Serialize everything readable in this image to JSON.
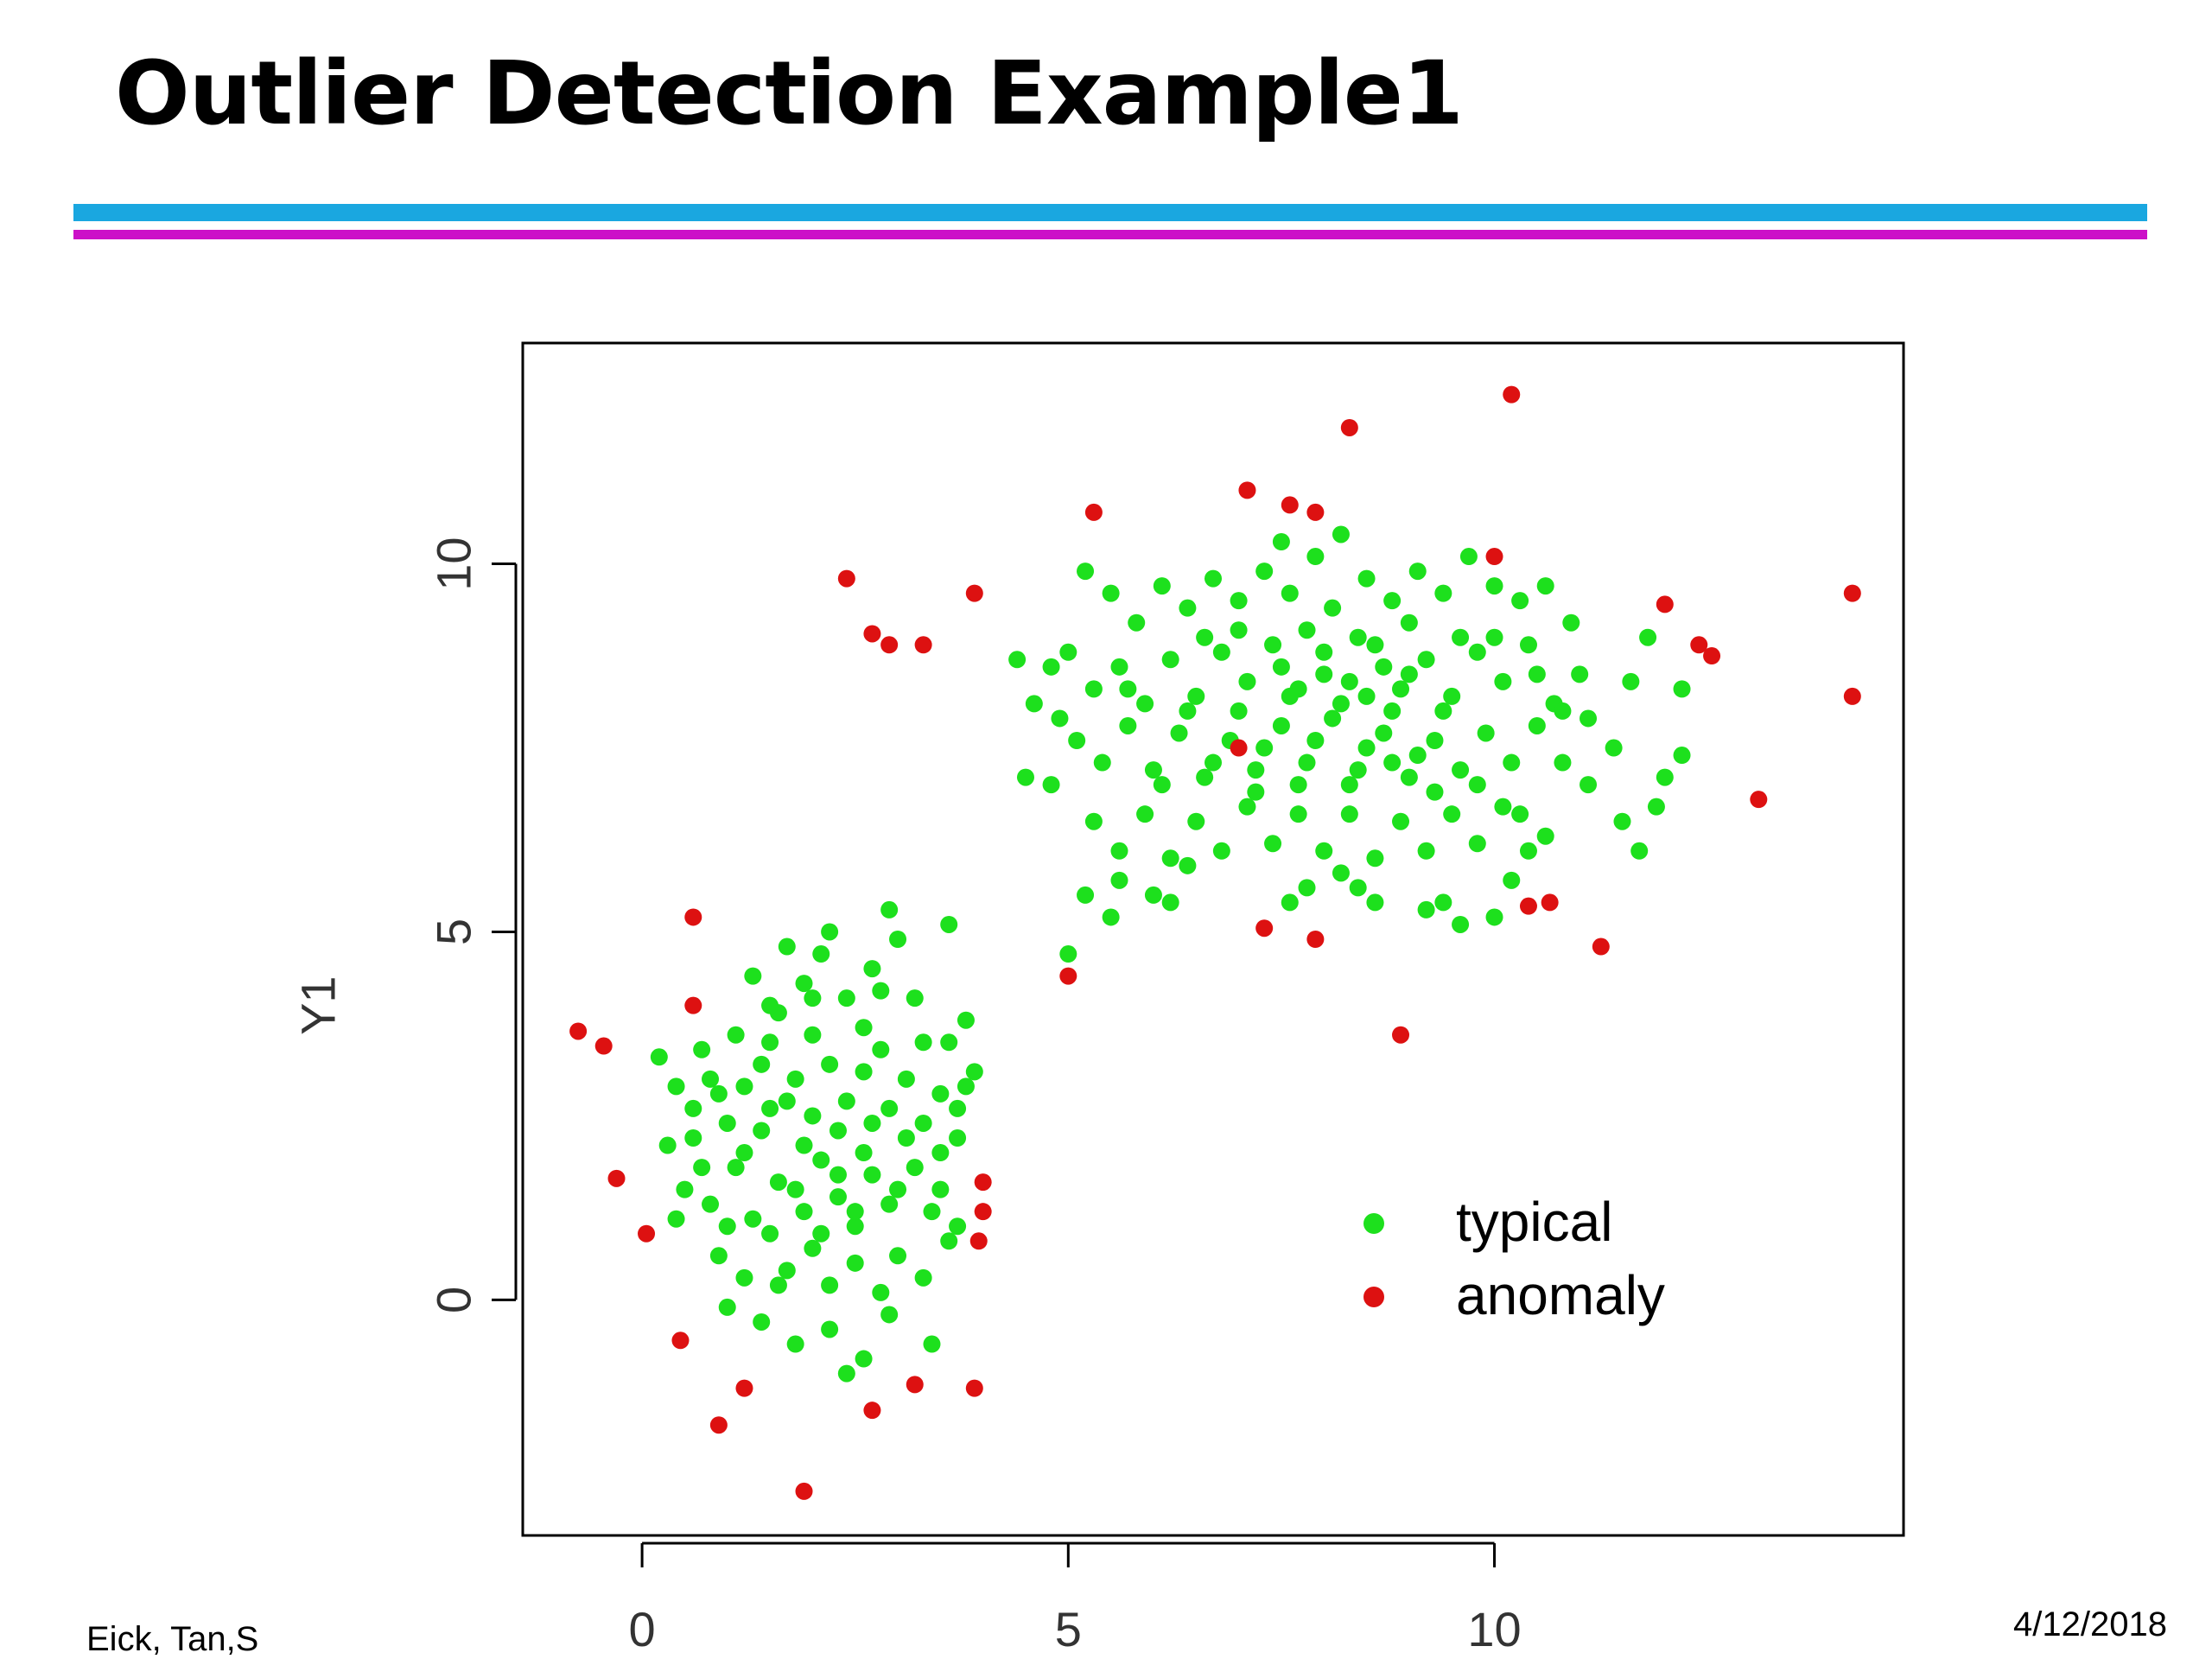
{
  "slide": {
    "title": "Outlier Detection Example1",
    "footer_left": "Eick, Tan,S",
    "footer_right": "4/12/2018"
  },
  "colors": {
    "typical": "#1de01d",
    "anomaly": "#dd1111",
    "rule_top": "#1aa7e0",
    "rule_bottom": "#cc10c8"
  },
  "chart_data": {
    "type": "scatter",
    "title": "",
    "xlabel": "",
    "ylabel": "Y1",
    "xlim": [
      -1.4,
      14.8
    ],
    "ylim": [
      -3.2,
      13.0
    ],
    "x_ticks": [
      0,
      5,
      10
    ],
    "y_ticks": [
      0,
      5,
      10
    ],
    "grid": false,
    "legend_position": "bottom-right",
    "series": [
      {
        "name": "typical",
        "color": "#1de01d",
        "points": [
          [
            0.2,
            3.3
          ],
          [
            0.4,
            2.9
          ],
          [
            0.3,
            2.1
          ],
          [
            0.6,
            2.6
          ],
          [
            0.8,
            3.0
          ],
          [
            1.0,
            2.4
          ],
          [
            1.2,
            2.9
          ],
          [
            1.5,
            3.5
          ],
          [
            1.4,
            2.3
          ],
          [
            1.8,
            3.0
          ],
          [
            2.0,
            2.5
          ],
          [
            2.2,
            3.2
          ],
          [
            2.4,
            2.7
          ],
          [
            2.6,
            3.1
          ],
          [
            2.9,
            2.6
          ],
          [
            3.1,
            3.0
          ],
          [
            3.3,
            2.4
          ],
          [
            3.5,
            2.8
          ],
          [
            3.7,
            2.2
          ],
          [
            0.5,
            1.5
          ],
          [
            0.8,
            1.3
          ],
          [
            1.1,
            1.8
          ],
          [
            1.3,
            1.1
          ],
          [
            1.6,
            1.6
          ],
          [
            1.9,
            1.2
          ],
          [
            2.1,
            1.9
          ],
          [
            2.3,
            1.4
          ],
          [
            2.5,
            1.0
          ],
          [
            2.7,
            1.7
          ],
          [
            2.9,
            1.3
          ],
          [
            3.2,
            1.8
          ],
          [
            3.4,
            1.2
          ],
          [
            3.6,
            0.8
          ],
          [
            0.9,
            0.6
          ],
          [
            1.2,
            0.3
          ],
          [
            1.5,
            0.9
          ],
          [
            1.7,
            0.4
          ],
          [
            2.0,
            0.7
          ],
          [
            2.2,
            0.2
          ],
          [
            2.5,
            0.5
          ],
          [
            2.8,
            0.1
          ],
          [
            3.0,
            0.6
          ],
          [
            1.0,
            -0.1
          ],
          [
            1.4,
            -0.3
          ],
          [
            1.8,
            -0.6
          ],
          [
            2.2,
            -0.4
          ],
          [
            2.6,
            -0.8
          ],
          [
            2.9,
            -0.2
          ],
          [
            3.4,
            -0.6
          ],
          [
            2.4,
            -1.0
          ],
          [
            1.6,
            3.9
          ],
          [
            1.9,
            4.3
          ],
          [
            2.1,
            4.7
          ],
          [
            2.4,
            4.1
          ],
          [
            2.7,
            4.5
          ],
          [
            3.0,
            4.9
          ],
          [
            2.2,
            5.0
          ],
          [
            2.9,
            5.3
          ],
          [
            1.3,
            4.4
          ],
          [
            1.7,
            4.8
          ],
          [
            3.6,
            3.5
          ],
          [
            3.8,
            3.8
          ],
          [
            3.9,
            3.1
          ],
          [
            3.7,
            2.6
          ],
          [
            3.5,
            1.5
          ],
          [
            3.7,
            1.0
          ],
          [
            3.3,
            0.3
          ],
          [
            0.6,
            2.2
          ],
          [
            0.7,
            3.4
          ],
          [
            1.1,
            3.6
          ],
          [
            1.4,
            3.2
          ],
          [
            1.7,
            2.7
          ],
          [
            2.0,
            3.6
          ],
          [
            2.3,
            2.3
          ],
          [
            2.6,
            2.0
          ],
          [
            2.8,
            3.4
          ],
          [
            3.1,
            2.2
          ],
          [
            3.3,
            3.5
          ],
          [
            3.6,
            5.1
          ],
          [
            1.2,
            2.0
          ],
          [
            1.5,
            2.6
          ],
          [
            1.9,
            2.1
          ],
          [
            2.3,
            1.7
          ],
          [
            2.7,
            2.4
          ],
          [
            3.0,
            1.5
          ],
          [
            1.0,
            1.0
          ],
          [
            1.8,
            1.5
          ],
          [
            2.5,
            1.2
          ],
          [
            2.1,
            0.9
          ],
          [
            1.6,
            0.2
          ],
          [
            0.4,
            1.1
          ],
          [
            0.7,
            1.8
          ],
          [
            3.8,
            2.9
          ],
          [
            3.2,
            4.1
          ],
          [
            2.6,
            3.7
          ],
          [
            1.5,
            4.0
          ],
          [
            2.0,
            4.1
          ],
          [
            0.9,
            2.8
          ],
          [
            2.8,
            4.2
          ],
          [
            3.5,
            2.0
          ],
          [
            4.4,
            8.7
          ],
          [
            4.8,
            8.6
          ],
          [
            5.2,
            9.9
          ],
          [
            5.5,
            9.6
          ],
          [
            5.8,
            9.2
          ],
          [
            6.1,
            9.7
          ],
          [
            6.4,
            9.4
          ],
          [
            6.7,
            9.8
          ],
          [
            7.0,
            9.5
          ],
          [
            7.3,
            9.9
          ],
          [
            7.6,
            9.6
          ],
          [
            7.9,
            10.1
          ],
          [
            8.2,
            10.4
          ],
          [
            8.5,
            9.8
          ],
          [
            8.8,
            9.5
          ],
          [
            9.1,
            9.9
          ],
          [
            9.4,
            9.6
          ],
          [
            9.7,
            10.1
          ],
          [
            10.0,
            9.7
          ],
          [
            10.3,
            9.5
          ],
          [
            10.6,
            9.7
          ],
          [
            10.9,
            9.2
          ],
          [
            5.0,
            8.8
          ],
          [
            5.3,
            8.3
          ],
          [
            5.6,
            8.6
          ],
          [
            5.9,
            8.1
          ],
          [
            6.2,
            8.7
          ],
          [
            6.5,
            8.2
          ],
          [
            6.8,
            8.8
          ],
          [
            7.1,
            8.4
          ],
          [
            7.4,
            8.9
          ],
          [
            7.7,
            8.3
          ],
          [
            8.0,
            8.8
          ],
          [
            8.3,
            8.4
          ],
          [
            8.6,
            8.9
          ],
          [
            8.9,
            8.3
          ],
          [
            9.2,
            8.7
          ],
          [
            9.5,
            8.2
          ],
          [
            9.8,
            8.8
          ],
          [
            10.1,
            8.4
          ],
          [
            10.4,
            8.9
          ],
          [
            10.7,
            8.1
          ],
          [
            11.0,
            8.5
          ],
          [
            4.5,
            7.1
          ],
          [
            4.8,
            7.0
          ],
          [
            5.1,
            7.6
          ],
          [
            5.4,
            7.3
          ],
          [
            5.7,
            7.8
          ],
          [
            6.0,
            7.2
          ],
          [
            6.3,
            7.7
          ],
          [
            6.6,
            7.1
          ],
          [
            6.9,
            7.6
          ],
          [
            7.2,
            7.2
          ],
          [
            7.5,
            7.8
          ],
          [
            7.8,
            7.3
          ],
          [
            8.1,
            7.9
          ],
          [
            8.4,
            7.2
          ],
          [
            8.7,
            7.7
          ],
          [
            9.0,
            7.1
          ],
          [
            9.3,
            7.6
          ],
          [
            9.6,
            7.2
          ],
          [
            9.9,
            7.7
          ],
          [
            10.2,
            7.3
          ],
          [
            10.5,
            7.8
          ],
          [
            10.8,
            7.3
          ],
          [
            11.1,
            7.9
          ],
          [
            5.3,
            6.5
          ],
          [
            5.6,
            6.1
          ],
          [
            5.9,
            6.6
          ],
          [
            6.2,
            6.0
          ],
          [
            6.5,
            6.5
          ],
          [
            6.8,
            6.1
          ],
          [
            7.1,
            6.7
          ],
          [
            7.4,
            6.2
          ],
          [
            7.7,
            6.6
          ],
          [
            8.0,
            6.1
          ],
          [
            8.3,
            6.6
          ],
          [
            8.6,
            6.0
          ],
          [
            8.9,
            6.5
          ],
          [
            9.2,
            6.1
          ],
          [
            9.5,
            6.6
          ],
          [
            9.8,
            6.2
          ],
          [
            10.1,
            6.7
          ],
          [
            10.4,
            6.1
          ],
          [
            5.2,
            5.5
          ],
          [
            5.6,
            5.7
          ],
          [
            6.0,
            5.5
          ],
          [
            6.4,
            5.9
          ],
          [
            7.8,
            5.6
          ],
          [
            8.2,
            5.8
          ],
          [
            8.6,
            5.4
          ],
          [
            9.2,
            5.3
          ],
          [
            9.6,
            5.1
          ],
          [
            10.0,
            5.2
          ],
          [
            5.0,
            4.7
          ],
          [
            11.5,
            6.5
          ],
          [
            11.9,
            6.7
          ],
          [
            12.2,
            7.4
          ],
          [
            12.0,
            7.1
          ],
          [
            11.6,
            8.4
          ],
          [
            12.2,
            8.3
          ],
          [
            11.8,
            9.0
          ],
          [
            11.4,
            7.5
          ],
          [
            11.7,
            6.1
          ],
          [
            7.5,
            10.3
          ],
          [
            7.8,
            9.1
          ],
          [
            8.1,
            9.4
          ],
          [
            8.4,
            9.0
          ],
          [
            8.7,
            8.6
          ],
          [
            9.0,
            9.2
          ],
          [
            7.0,
            8.0
          ],
          [
            7.3,
            7.5
          ],
          [
            7.6,
            8.2
          ],
          [
            7.9,
            7.6
          ],
          [
            8.2,
            8.1
          ],
          [
            8.5,
            7.5
          ],
          [
            8.8,
            8.0
          ],
          [
            9.1,
            7.4
          ],
          [
            9.4,
            8.0
          ],
          [
            6.4,
            8.0
          ],
          [
            6.1,
            7.0
          ],
          [
            6.7,
            7.3
          ],
          [
            7.2,
            6.9
          ],
          [
            7.7,
            7.0
          ],
          [
            8.3,
            7.0
          ],
          [
            8.8,
            7.3
          ],
          [
            9.3,
            6.9
          ],
          [
            9.8,
            7.0
          ],
          [
            10.3,
            6.6
          ],
          [
            6.6,
            9.0
          ],
          [
            7.0,
            9.1
          ],
          [
            7.5,
            8.6
          ],
          [
            8.0,
            8.5
          ],
          [
            8.5,
            8.2
          ],
          [
            9.0,
            8.5
          ],
          [
            9.6,
            9.0
          ],
          [
            10.0,
            9.0
          ],
          [
            10.5,
            8.5
          ],
          [
            10.8,
            8.0
          ],
          [
            11.1,
            7.0
          ],
          [
            5.5,
            5.2
          ],
          [
            6.2,
            5.4
          ],
          [
            7.6,
            5.4
          ],
          [
            8.4,
            5.6
          ],
          [
            9.4,
            5.4
          ],
          [
            10.2,
            5.7
          ],
          [
            10.6,
            6.3
          ],
          [
            4.6,
            8.1
          ],
          [
            4.9,
            7.9
          ],
          [
            5.7,
            8.3
          ]
        ]
      },
      {
        "name": "anomaly",
        "color": "#dd1111",
        "points": [
          [
            -0.75,
            3.65
          ],
          [
            -0.45,
            3.45
          ],
          [
            -0.3,
            1.65
          ],
          [
            0.05,
            0.9
          ],
          [
            0.45,
            -0.55
          ],
          [
            0.6,
            5.2
          ],
          [
            0.6,
            4.0
          ],
          [
            0.9,
            -1.7
          ],
          [
            1.2,
            -1.2
          ],
          [
            1.9,
            -2.6
          ],
          [
            2.7,
            -1.5
          ],
          [
            3.2,
            -1.15
          ],
          [
            3.9,
            -1.2
          ],
          [
            3.95,
            0.8
          ],
          [
            4.0,
            1.2
          ],
          [
            4.0,
            1.6
          ],
          [
            2.4,
            9.8
          ],
          [
            2.7,
            9.05
          ],
          [
            2.9,
            8.9
          ],
          [
            3.3,
            8.9
          ],
          [
            3.9,
            9.6
          ],
          [
            5.0,
            4.4
          ],
          [
            5.3,
            10.7
          ],
          [
            7.0,
            7.5
          ],
          [
            7.1,
            11.0
          ],
          [
            7.3,
            5.05
          ],
          [
            7.6,
            10.8
          ],
          [
            7.9,
            10.7
          ],
          [
            7.9,
            4.9
          ],
          [
            8.3,
            11.85
          ],
          [
            8.9,
            3.6
          ],
          [
            10.0,
            10.1
          ],
          [
            10.2,
            12.3
          ],
          [
            10.4,
            5.35
          ],
          [
            10.65,
            5.4
          ],
          [
            11.25,
            4.8
          ],
          [
            12.0,
            9.45
          ],
          [
            12.4,
            8.9
          ],
          [
            12.55,
            8.75
          ],
          [
            13.1,
            6.8
          ],
          [
            14.2,
            9.6
          ],
          [
            14.2,
            8.2
          ]
        ]
      }
    ]
  }
}
